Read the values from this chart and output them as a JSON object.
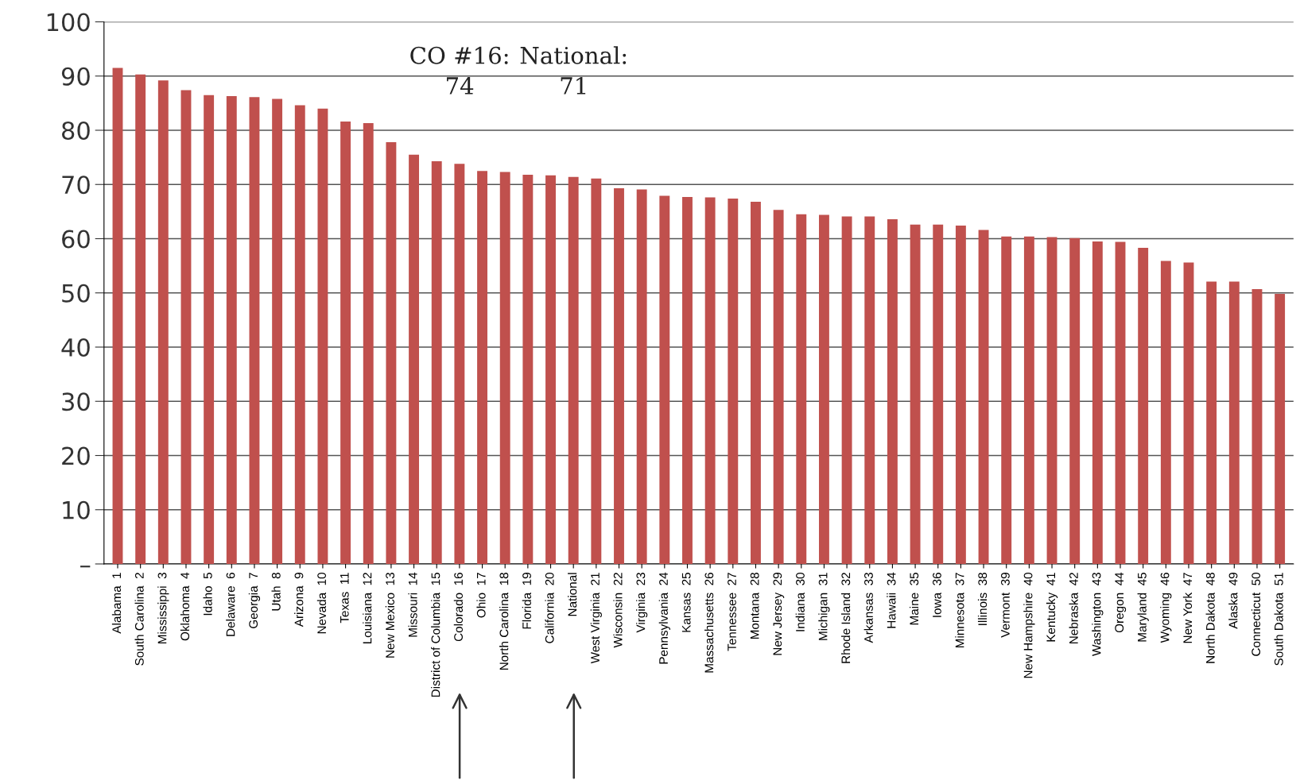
{
  "chart_data": {
    "type": "bar",
    "categories": [
      "Alabama  1",
      "South Carolina  2",
      "Mississippi  3",
      "Oklahoma  4",
      "Idaho  5",
      "Delaware  6",
      "Georgia  7",
      "Utah  8",
      "Arizona  9",
      "Nevada  10",
      "Texas  11",
      "Louisiana  12",
      "New Mexico  13",
      "Missouri  14",
      "District of Columbia  15",
      "Colorado  16",
      "Ohio  17",
      "North Carolina  18",
      "Florida  19",
      "California  20",
      "National",
      "West Virginia  21",
      "Wisconsin  22",
      "Virginia  23",
      "Pennsylvania  24",
      "Kansas  25",
      "Massachusetts  26",
      "Tennessee  27",
      "Montana  28",
      "New Jersey  29",
      "Indiana  30",
      "Michigan  31",
      "Rhode Island  32",
      "Arkansas  33",
      "Hawaii  34",
      "Maine  35",
      "Iowa  36",
      "Minnesota  37",
      "Illinois  38",
      "Vermont  39",
      "New Hampshire  40",
      "Kentucky  41",
      "Nebraska  42",
      "Washington  43",
      "Oregon  44",
      "Maryland  45",
      "Wyoming  46",
      "New York  47",
      "North Dakota  48",
      "Alaska  49",
      "Connecticut  50",
      "South Dakota  51"
    ],
    "values": [
      91.5,
      90.3,
      89.2,
      87.4,
      86.5,
      86.3,
      86.1,
      85.8,
      84.6,
      84.0,
      81.6,
      81.3,
      77.8,
      75.5,
      74.3,
      73.8,
      72.5,
      72.3,
      71.8,
      71.7,
      71.4,
      71.1,
      69.3,
      69.1,
      67.9,
      67.7,
      67.6,
      67.4,
      66.8,
      65.3,
      64.5,
      64.4,
      64.1,
      64.1,
      63.6,
      62.6,
      62.6,
      62.4,
      61.6,
      60.4,
      60.4,
      60.3,
      60.1,
      59.5,
      59.4,
      58.3,
      55.9,
      55.6,
      52.1,
      52.1,
      50.7,
      49.8
    ],
    "color": "#c0504d",
    "ylim": [
      0,
      100
    ],
    "yticks": [
      {
        "value": 0,
        "label": "–"
      },
      10,
      20,
      30,
      40,
      50,
      60,
      70,
      80,
      90,
      100
    ],
    "grid": "y",
    "annotations": [
      "CO #16:\n74",
      "National:\n71"
    ]
  }
}
